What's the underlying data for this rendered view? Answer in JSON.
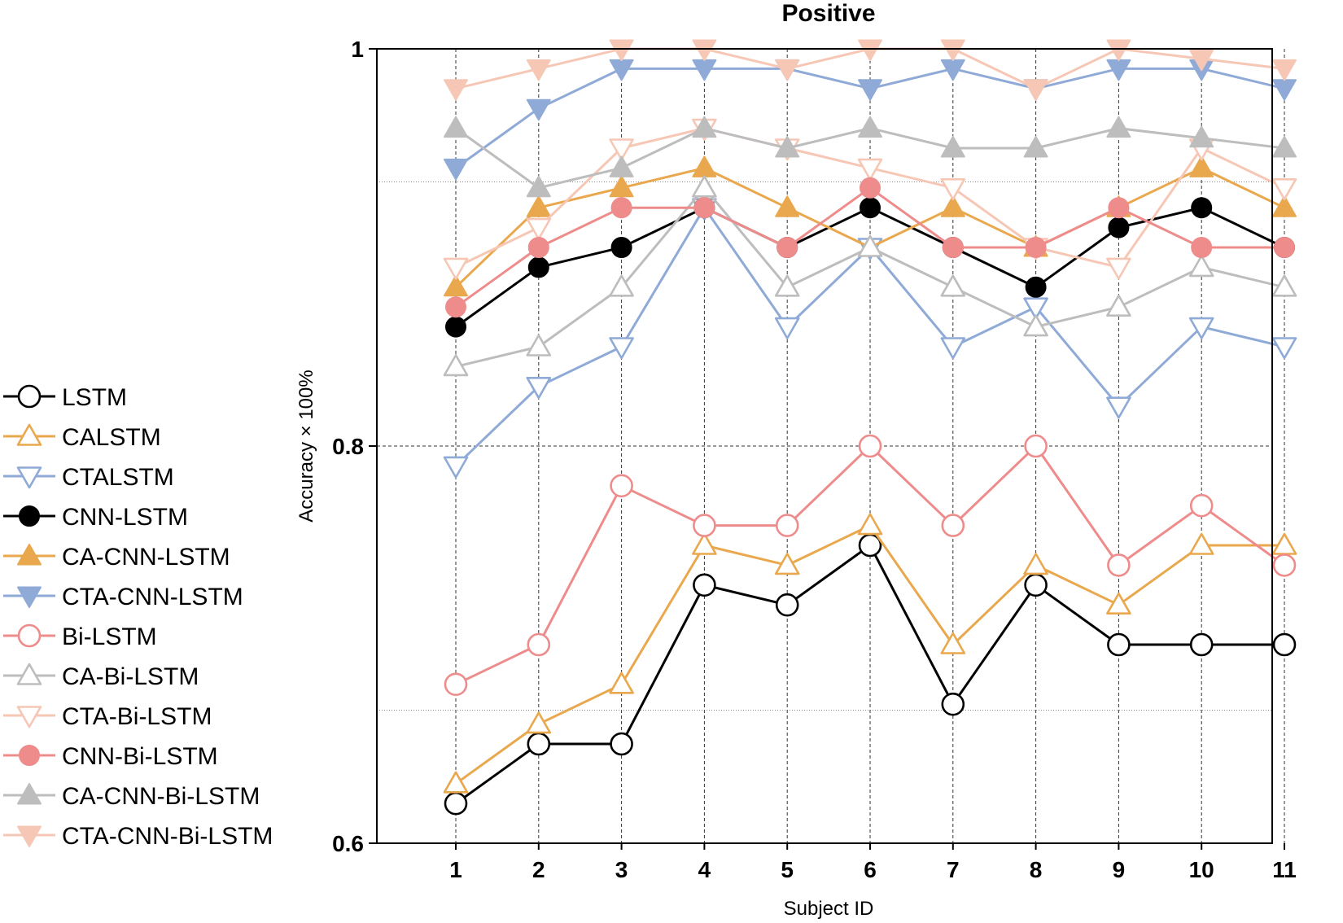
{
  "chart_data": {
    "type": "line",
    "title": "Positive",
    "xlabel": "Subject ID",
    "ylabel": "Accuracy × 100%",
    "x": [
      1,
      2,
      3,
      4,
      5,
      6,
      7,
      8,
      9,
      10,
      11
    ],
    "x_tick_labels": [
      "1",
      "2",
      "3",
      "4",
      "5",
      "6",
      "7",
      "8",
      "9",
      "10",
      "11"
    ],
    "ylim": [
      0.6,
      1.0
    ],
    "y_ticks": [
      0.6,
      0.8,
      1.0
    ],
    "y_tick_labels": [
      "0.6",
      "0.8",
      "1"
    ],
    "minor_gridlines_y": [
      0.667,
      0.933
    ],
    "grid": true,
    "legend_position": "left",
    "series": [
      {
        "name": "LSTM",
        "color": "#000000",
        "marker": "circle",
        "filled": false,
        "values": [
          0.62,
          0.65,
          0.65,
          0.73,
          0.72,
          0.75,
          0.67,
          0.73,
          0.7,
          0.7,
          0.7
        ]
      },
      {
        "name": "CALSTM",
        "color": "#E9A84E",
        "marker": "triangle-up",
        "filled": false,
        "values": [
          0.63,
          0.66,
          0.68,
          0.75,
          0.74,
          0.76,
          0.7,
          0.74,
          0.72,
          0.75,
          0.75
        ]
      },
      {
        "name": "CTALSTM",
        "color": "#8FAAD6",
        "marker": "triangle-down",
        "filled": false,
        "values": [
          0.79,
          0.83,
          0.85,
          0.92,
          0.86,
          0.9,
          0.85,
          0.87,
          0.82,
          0.86,
          0.85
        ]
      },
      {
        "name": "CNN-LSTM",
        "color": "#000000",
        "marker": "circle",
        "filled": true,
        "values": [
          0.86,
          0.89,
          0.9,
          0.92,
          0.9,
          0.92,
          0.9,
          0.88,
          0.91,
          0.92,
          0.9
        ]
      },
      {
        "name": "CA-CNN-LSTM",
        "color": "#E9A84E",
        "marker": "triangle-up",
        "filled": true,
        "values": [
          0.88,
          0.92,
          0.93,
          0.94,
          0.92,
          0.9,
          0.92,
          0.9,
          0.92,
          0.94,
          0.92
        ]
      },
      {
        "name": "CTA-CNN-LSTM",
        "color": "#8FAAD6",
        "marker": "triangle-down",
        "filled": true,
        "values": [
          0.94,
          0.97,
          0.99,
          0.99,
          0.99,
          0.98,
          0.99,
          0.98,
          0.99,
          0.99,
          0.98
        ]
      },
      {
        "name": "Bi-LSTM",
        "color": "#EE8C8C",
        "marker": "circle",
        "filled": false,
        "values": [
          0.68,
          0.7,
          0.78,
          0.76,
          0.76,
          0.8,
          0.76,
          0.8,
          0.74,
          0.77,
          0.74
        ]
      },
      {
        "name": "CA-Bi-LSTM",
        "color": "#BDBDBD",
        "marker": "triangle-up",
        "filled": false,
        "values": [
          0.84,
          0.85,
          0.88,
          0.93,
          0.88,
          0.9,
          0.88,
          0.86,
          0.87,
          0.89,
          0.88
        ]
      },
      {
        "name": "CTA-Bi-LSTM",
        "color": "#F6C7B5",
        "marker": "triangle-down",
        "filled": false,
        "values": [
          0.89,
          0.91,
          0.95,
          0.96,
          0.95,
          0.94,
          0.93,
          0.9,
          0.89,
          0.95,
          0.93
        ]
      },
      {
        "name": "CNN-Bi-LSTM",
        "color": "#EE8C8C",
        "marker": "circle",
        "filled": true,
        "values": [
          0.87,
          0.9,
          0.92,
          0.92,
          0.9,
          0.93,
          0.9,
          0.9,
          0.92,
          0.9,
          0.9
        ]
      },
      {
        "name": "CA-CNN-Bi-LSTM",
        "color": "#BDBDBD",
        "marker": "triangle-up",
        "filled": true,
        "values": [
          0.96,
          0.93,
          0.94,
          0.96,
          0.95,
          0.96,
          0.95,
          0.95,
          0.96,
          0.955,
          0.95
        ]
      },
      {
        "name": "CTA-CNN-Bi-LSTM",
        "color": "#F6C7B5",
        "marker": "triangle-down",
        "filled": true,
        "values": [
          0.98,
          0.99,
          1.0,
          1.0,
          0.99,
          1.0,
          1.0,
          0.98,
          1.0,
          0.995,
          0.99
        ]
      }
    ]
  }
}
